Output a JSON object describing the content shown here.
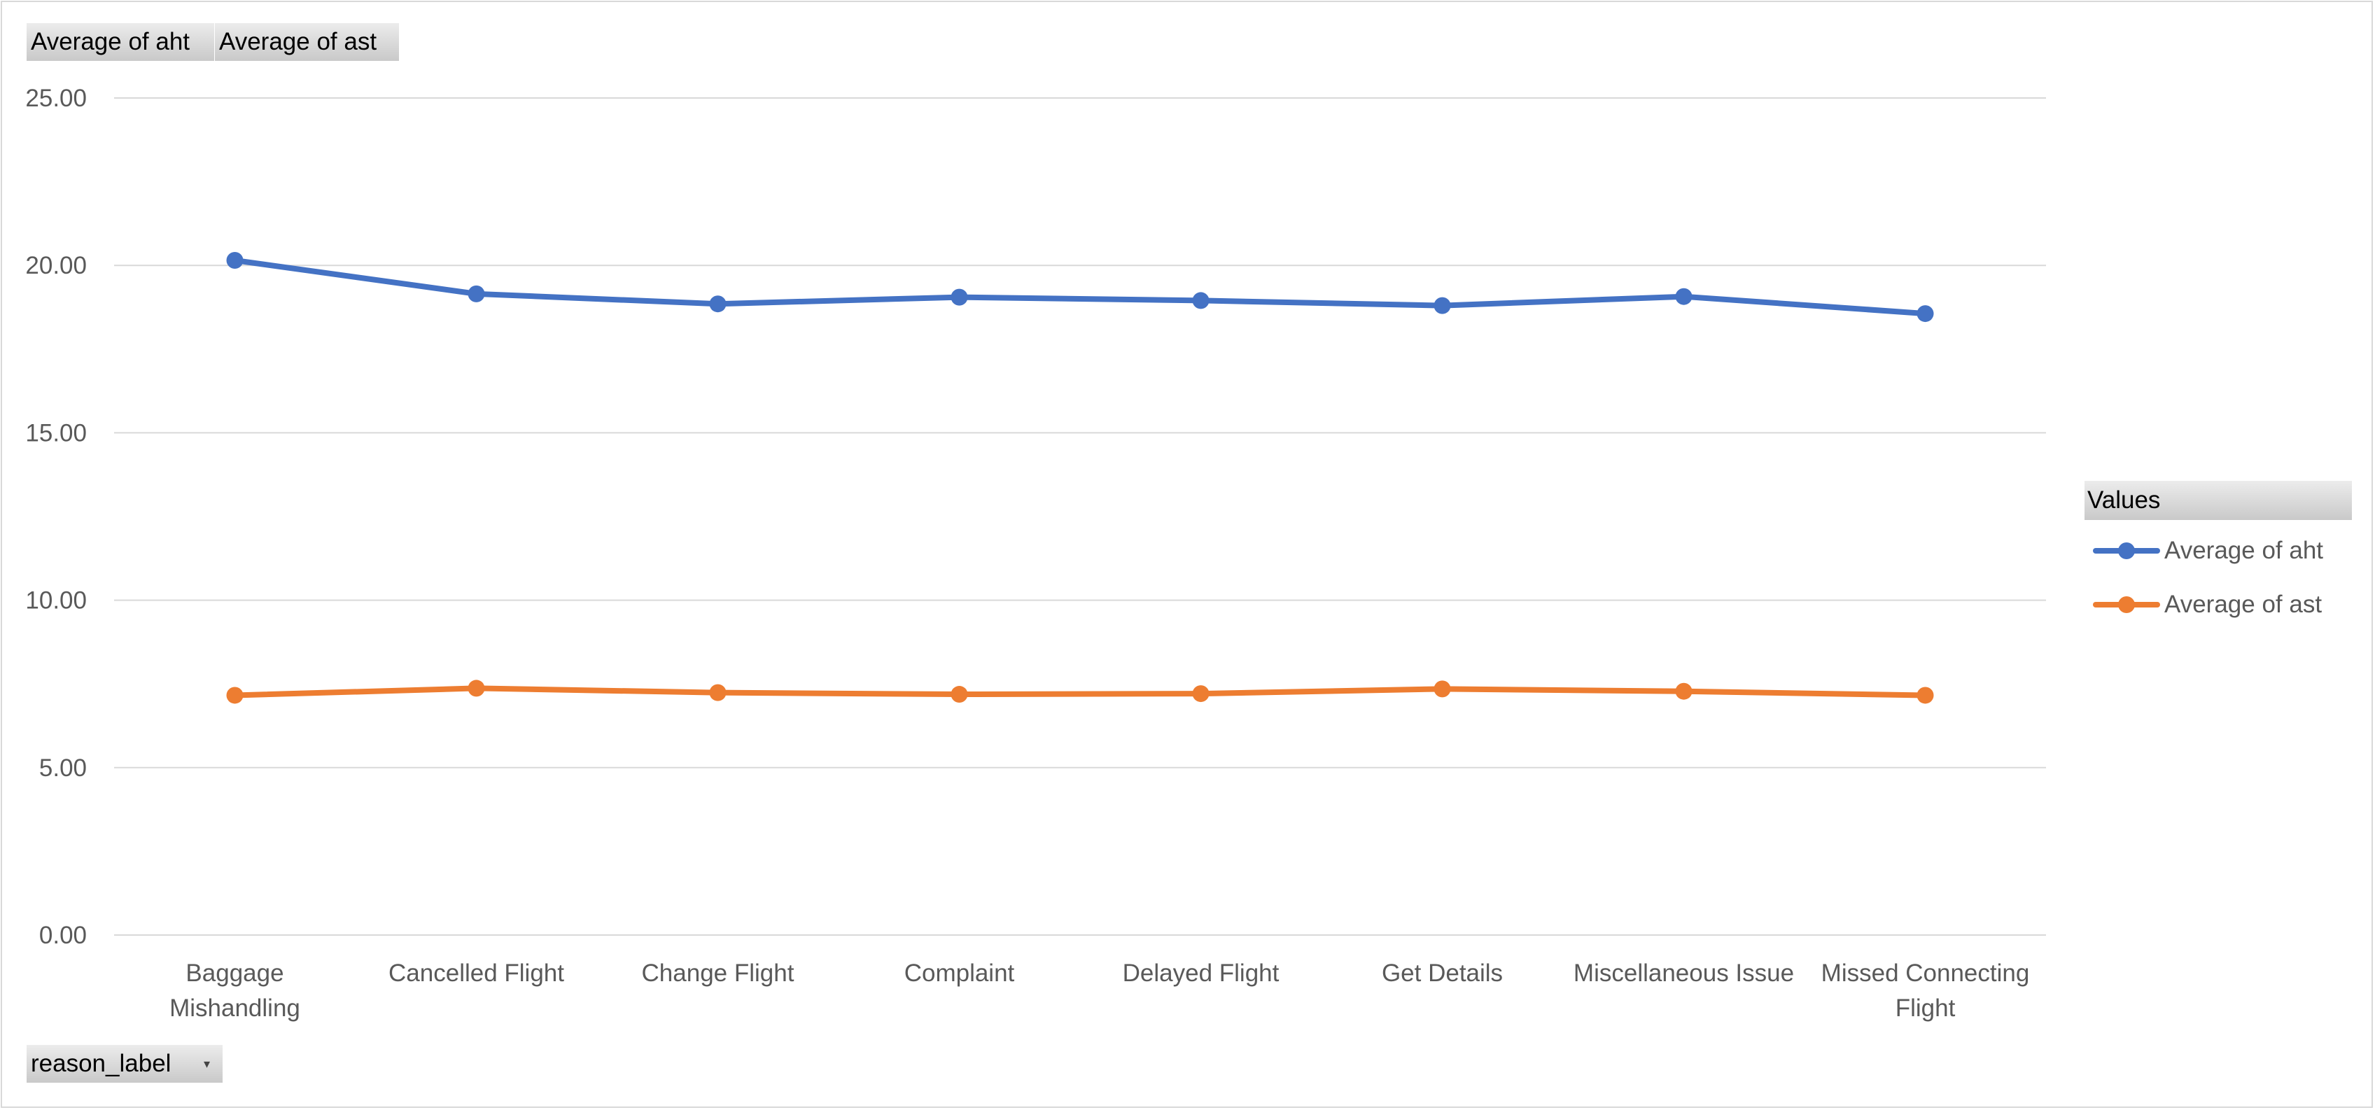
{
  "field_buttons": {
    "values_1": "Average of aht",
    "values_2": "Average of ast",
    "axis_field": "reason_label"
  },
  "legend": {
    "title": "Values",
    "items": [
      "Average of aht",
      "Average of ast"
    ]
  },
  "colors": {
    "aht": "#4472C4",
    "ast": "#ED7D31",
    "grid": "#d9d9d9",
    "text": "#595959"
  },
  "chart_data": {
    "type": "line",
    "categories": [
      [
        "Baggage",
        "Mishandling"
      ],
      [
        "Cancelled Flight"
      ],
      [
        "Change Flight"
      ],
      [
        "Complaint"
      ],
      [
        "Delayed Flight"
      ],
      [
        "Get Details"
      ],
      [
        "Miscellaneous Issue"
      ],
      [
        "Missed Connecting",
        "Flight"
      ]
    ],
    "series": [
      {
        "name": "Average of aht",
        "values": [
          20.15,
          19.15,
          18.85,
          19.05,
          18.95,
          18.8,
          19.07,
          18.56
        ]
      },
      {
        "name": "Average of ast",
        "values": [
          7.16,
          7.37,
          7.24,
          7.19,
          7.21,
          7.35,
          7.28,
          7.16
        ]
      }
    ],
    "ylim": [
      0,
      25
    ],
    "yticks": [
      "0.00",
      "5.00",
      "10.00",
      "15.00",
      "20.00",
      "25.00"
    ],
    "grid": true,
    "legend_position": "right"
  }
}
